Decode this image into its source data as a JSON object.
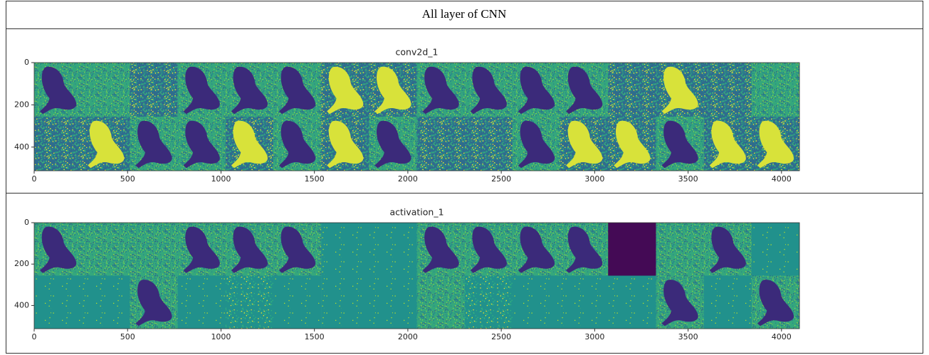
{
  "title": "All layer of CNN",
  "panels": [
    {
      "title": "conv2d_1",
      "xlim": [
        0,
        4096
      ],
      "ylim": [
        512,
        0
      ],
      "xticks": [
        0,
        500,
        1000,
        1500,
        2000,
        2500,
        3000,
        3500,
        4000
      ],
      "yticks": [
        0,
        200,
        400
      ]
    },
    {
      "title": "activation_1",
      "xlim": [
        0,
        4096
      ],
      "ylim": [
        512,
        0
      ],
      "xticks": [
        0,
        500,
        1000,
        1500,
        2000,
        2500,
        3000,
        3500,
        4000
      ],
      "yticks": [
        0,
        200,
        400
      ]
    }
  ]
}
